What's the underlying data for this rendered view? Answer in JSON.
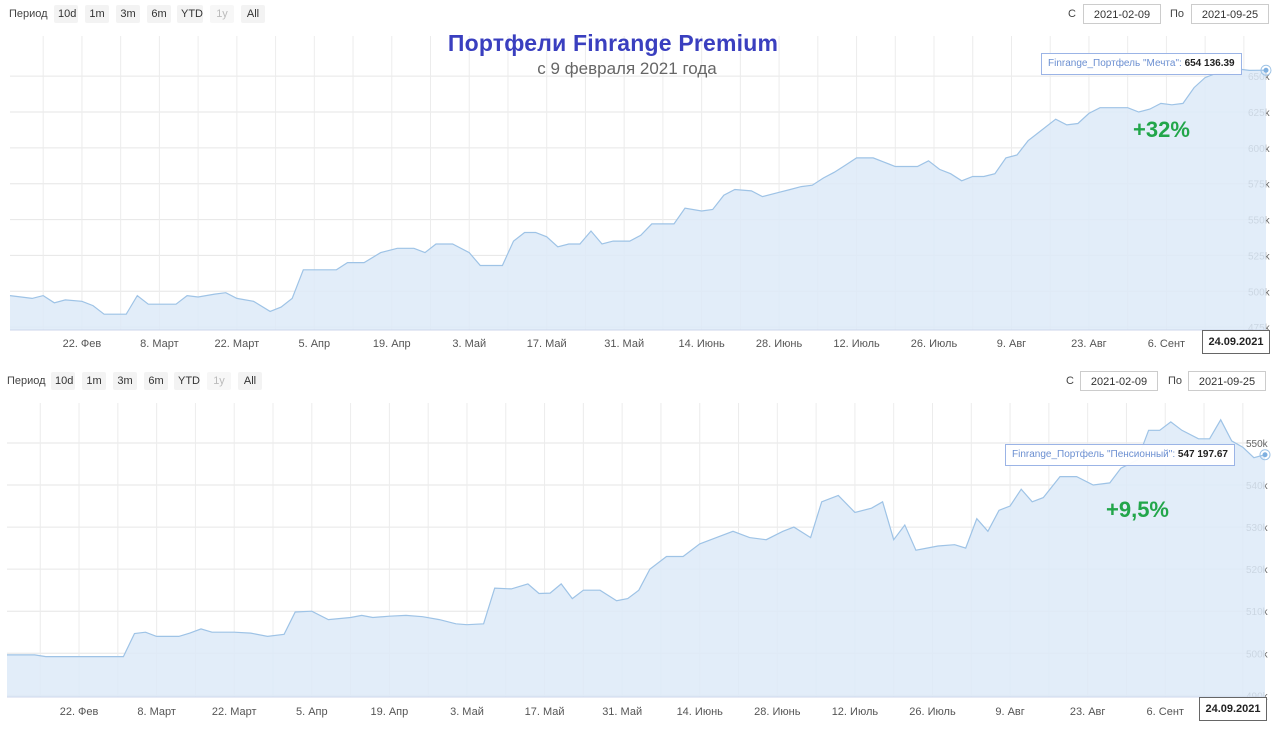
{
  "toolbar": {
    "period_label": "Период",
    "range_buttons": [
      "10d",
      "1m",
      "3m",
      "6m",
      "YTD",
      "1y",
      "All"
    ],
    "from_label": "С",
    "to_label": "По"
  },
  "title": "Портфели Finrange Premium",
  "subtitle": "с 9 февраля 2021 года",
  "charts": [
    {
      "from_date": "2021-02-09",
      "to_date": "2021-09-25",
      "tooltip_series": "Finrange_Портфель \"Мечта\"",
      "tooltip_value": "654 136.39",
      "change": "+32%",
      "date_flag": "24.09.2021"
    },
    {
      "from_date": "2021-02-09",
      "to_date": "2021-09-25",
      "tooltip_series": "Finrange_Портфель \"Пенсионный\"",
      "tooltip_value": "547 197.67",
      "change": "+9,5%",
      "date_flag": "24.09.2021"
    }
  ],
  "colors": {
    "line": "#9ec3e6",
    "fill": "#ddeaf8",
    "title": "#3a3fbf",
    "change": "#22a64a"
  },
  "chart_data": [
    {
      "type": "area",
      "x_range": [
        "2021-02-09",
        "2021-09-24"
      ],
      "x_ticks": [
        "22. Фев",
        "8. Март",
        "22. Март",
        "5. Апр",
        "19. Апр",
        "3. Май",
        "17. Май",
        "31. Май",
        "14. Июнь",
        "28. Июнь",
        "12. Июль",
        "26. Июль",
        "9. Авг",
        "23. Авг",
        "6. Сент"
      ],
      "y_ticks": [
        475000,
        500000,
        525000,
        550000,
        575000,
        600000,
        625000,
        650000
      ],
      "y_tick_labels": [
        "475k",
        "500k",
        "525k",
        "550k",
        "575k",
        "600k",
        "625k",
        "650k"
      ],
      "ylim": [
        473000,
        678000
      ],
      "grid": true,
      "series": [
        {
          "name": "Finrange_Портфель \"Мечта\"",
          "points": [
            [
              "2021-02-09",
              497000
            ],
            [
              "2021-02-11",
              496000
            ],
            [
              "2021-02-13",
              495000
            ],
            [
              "2021-02-15",
              497000
            ],
            [
              "2021-02-17",
              492000
            ],
            [
              "2021-02-19",
              494000
            ],
            [
              "2021-02-22",
              493000
            ],
            [
              "2021-02-24",
              490000
            ],
            [
              "2021-02-26",
              484000
            ],
            [
              "2021-03-02",
              484000
            ],
            [
              "2021-03-04",
              497000
            ],
            [
              "2021-03-06",
              491000
            ],
            [
              "2021-03-09",
              491000
            ],
            [
              "2021-03-11",
              491000
            ],
            [
              "2021-03-13",
              497000
            ],
            [
              "2021-03-15",
              496000
            ],
            [
              "2021-03-18",
              498000
            ],
            [
              "2021-03-20",
              499000
            ],
            [
              "2021-03-22",
              495000
            ],
            [
              "2021-03-25",
              493000
            ],
            [
              "2021-03-28",
              486000
            ],
            [
              "2021-03-30",
              489000
            ],
            [
              "2021-04-01",
              495000
            ],
            [
              "2021-04-03",
              515000
            ],
            [
              "2021-04-06",
              515000
            ],
            [
              "2021-04-09",
              515000
            ],
            [
              "2021-04-11",
              520000
            ],
            [
              "2021-04-14",
              520000
            ],
            [
              "2021-04-17",
              527000
            ],
            [
              "2021-04-20",
              530000
            ],
            [
              "2021-04-23",
              530000
            ],
            [
              "2021-04-25",
              527000
            ],
            [
              "2021-04-27",
              533000
            ],
            [
              "2021-04-30",
              533000
            ],
            [
              "2021-05-03",
              527000
            ],
            [
              "2021-05-05",
              518000
            ],
            [
              "2021-05-09",
              518000
            ],
            [
              "2021-05-11",
              535000
            ],
            [
              "2021-05-13",
              541000
            ],
            [
              "2021-05-15",
              541000
            ],
            [
              "2021-05-17",
              538000
            ],
            [
              "2021-05-19",
              531000
            ],
            [
              "2021-05-21",
              533000
            ],
            [
              "2021-05-23",
              533000
            ],
            [
              "2021-05-25",
              542000
            ],
            [
              "2021-05-27",
              533000
            ],
            [
              "2021-05-29",
              535000
            ],
            [
              "2021-06-01",
              535000
            ],
            [
              "2021-06-03",
              539000
            ],
            [
              "2021-06-05",
              547000
            ],
            [
              "2021-06-09",
              547000
            ],
            [
              "2021-06-11",
              558000
            ],
            [
              "2021-06-14",
              556000
            ],
            [
              "2021-06-16",
              557000
            ],
            [
              "2021-06-18",
              567000
            ],
            [
              "2021-06-20",
              571000
            ],
            [
              "2021-06-23",
              570000
            ],
            [
              "2021-06-25",
              566000
            ],
            [
              "2021-06-28",
              569000
            ],
            [
              "2021-06-30",
              571000
            ],
            [
              "2021-07-02",
              573000
            ],
            [
              "2021-07-04",
              574000
            ],
            [
              "2021-07-06",
              579000
            ],
            [
              "2021-07-08",
              583000
            ],
            [
              "2021-07-10",
              588000
            ],
            [
              "2021-07-12",
              593000
            ],
            [
              "2021-07-15",
              593000
            ],
            [
              "2021-07-17",
              590000
            ],
            [
              "2021-07-19",
              587000
            ],
            [
              "2021-07-21",
              587000
            ],
            [
              "2021-07-23",
              587000
            ],
            [
              "2021-07-25",
              591000
            ],
            [
              "2021-07-27",
              585000
            ],
            [
              "2021-07-29",
              582000
            ],
            [
              "2021-07-31",
              577000
            ],
            [
              "2021-08-02",
              580000
            ],
            [
              "2021-08-04",
              580000
            ],
            [
              "2021-08-06",
              582000
            ],
            [
              "2021-08-08",
              593000
            ],
            [
              "2021-08-10",
              595000
            ],
            [
              "2021-08-12",
              605000
            ],
            [
              "2021-08-14",
              611000
            ],
            [
              "2021-08-17",
              620000
            ],
            [
              "2021-08-19",
              616000
            ],
            [
              "2021-08-21",
              617000
            ],
            [
              "2021-08-23",
              624000
            ],
            [
              "2021-08-25",
              628000
            ],
            [
              "2021-08-28",
              628000
            ],
            [
              "2021-08-30",
              628000
            ],
            [
              "2021-09-01",
              625000
            ],
            [
              "2021-09-03",
              627000
            ],
            [
              "2021-09-05",
              631000
            ],
            [
              "2021-09-07",
              630000
            ],
            [
              "2021-09-09",
              631000
            ],
            [
              "2021-09-11",
              642000
            ],
            [
              "2021-09-13",
              649000
            ],
            [
              "2021-09-15",
              652000
            ],
            [
              "2021-09-17",
              652000
            ],
            [
              "2021-09-19",
              655000
            ],
            [
              "2021-09-21",
              654000
            ],
            [
              "2021-09-24",
              654136.39
            ]
          ]
        }
      ]
    },
    {
      "type": "area",
      "x_range": [
        "2021-02-09",
        "2021-09-24"
      ],
      "x_ticks": [
        "22. Фев",
        "8. Март",
        "22. Март",
        "5. Апр",
        "19. Апр",
        "3. Май",
        "17. Май",
        "31. Май",
        "14. Июнь",
        "28. Июнь",
        "12. Июль",
        "26. Июль",
        "9. Авг",
        "23. Авг",
        "6. Сент"
      ],
      "y_ticks": [
        490000,
        500000,
        510000,
        520000,
        530000,
        540000,
        550000
      ],
      "y_tick_labels": [
        "490k",
        "500k",
        "510k",
        "520k",
        "530k",
        "540k",
        "550k"
      ],
      "ylim": [
        489600,
        559500
      ],
      "grid": true,
      "series": [
        {
          "name": "Finrange_Портфель \"Пенсионный\"",
          "points": [
            [
              "2021-02-09",
              499600
            ],
            [
              "2021-02-14",
              499600
            ],
            [
              "2021-02-16",
              499200
            ],
            [
              "2021-02-20",
              499200
            ],
            [
              "2021-02-24",
              499200
            ],
            [
              "2021-02-28",
              499200
            ],
            [
              "2021-03-02",
              499200
            ],
            [
              "2021-03-04",
              504700
            ],
            [
              "2021-03-06",
              505000
            ],
            [
              "2021-03-08",
              504000
            ],
            [
              "2021-03-12",
              504000
            ],
            [
              "2021-03-14",
              504800
            ],
            [
              "2021-03-16",
              505800
            ],
            [
              "2021-03-18",
              505000
            ],
            [
              "2021-03-22",
              505000
            ],
            [
              "2021-03-25",
              504800
            ],
            [
              "2021-03-28",
              504000
            ],
            [
              "2021-03-31",
              504500
            ],
            [
              "2021-04-02",
              509800
            ],
            [
              "2021-04-05",
              510000
            ],
            [
              "2021-04-08",
              508000
            ],
            [
              "2021-04-12",
              508500
            ],
            [
              "2021-04-14",
              509000
            ],
            [
              "2021-04-16",
              508500
            ],
            [
              "2021-04-19",
              508800
            ],
            [
              "2021-04-22",
              509000
            ],
            [
              "2021-04-25",
              508700
            ],
            [
              "2021-04-28",
              508000
            ],
            [
              "2021-05-01",
              507000
            ],
            [
              "2021-05-03",
              506800
            ],
            [
              "2021-05-06",
              507000
            ],
            [
              "2021-05-08",
              515500
            ],
            [
              "2021-05-11",
              515300
            ],
            [
              "2021-05-14",
              516500
            ],
            [
              "2021-05-16",
              514200
            ],
            [
              "2021-05-18",
              514300
            ],
            [
              "2021-05-20",
              516500
            ],
            [
              "2021-05-22",
              513000
            ],
            [
              "2021-05-24",
              515000
            ],
            [
              "2021-05-27",
              515000
            ],
            [
              "2021-05-30",
              512500
            ],
            [
              "2021-06-01",
              513000
            ],
            [
              "2021-06-03",
              515000
            ],
            [
              "2021-06-05",
              520000
            ],
            [
              "2021-06-08",
              523000
            ],
            [
              "2021-06-11",
              523000
            ],
            [
              "2021-06-14",
              526000
            ],
            [
              "2021-06-17",
              527500
            ],
            [
              "2021-06-20",
              529000
            ],
            [
              "2021-06-23",
              527500
            ],
            [
              "2021-06-26",
              527000
            ],
            [
              "2021-06-29",
              529000
            ],
            [
              "2021-07-01",
              530000
            ],
            [
              "2021-07-04",
              527500
            ],
            [
              "2021-07-06",
              536000
            ],
            [
              "2021-07-09",
              537500
            ],
            [
              "2021-07-12",
              533500
            ],
            [
              "2021-07-15",
              534500
            ],
            [
              "2021-07-17",
              536000
            ],
            [
              "2021-07-19",
              527000
            ],
            [
              "2021-07-21",
              530500
            ],
            [
              "2021-07-23",
              524500
            ],
            [
              "2021-07-25",
              525000
            ],
            [
              "2021-07-27",
              525500
            ],
            [
              "2021-07-30",
              525800
            ],
            [
              "2021-08-01",
              525000
            ],
            [
              "2021-08-03",
              532000
            ],
            [
              "2021-08-05",
              529000
            ],
            [
              "2021-08-07",
              534000
            ],
            [
              "2021-08-09",
              535000
            ],
            [
              "2021-08-11",
              539000
            ],
            [
              "2021-08-13",
              536000
            ],
            [
              "2021-08-15",
              537000
            ],
            [
              "2021-08-18",
              542000
            ],
            [
              "2021-08-21",
              542000
            ],
            [
              "2021-08-24",
              540000
            ],
            [
              "2021-08-27",
              540500
            ],
            [
              "2021-08-29",
              544000
            ],
            [
              "2021-09-01",
              546000
            ],
            [
              "2021-09-03",
              553000
            ],
            [
              "2021-09-05",
              553000
            ],
            [
              "2021-09-07",
              555000
            ],
            [
              "2021-09-09",
              553000
            ],
            [
              "2021-09-12",
              551000
            ],
            [
              "2021-09-14",
              551000
            ],
            [
              "2021-09-16",
              555500
            ],
            [
              "2021-09-18",
              550500
            ],
            [
              "2021-09-20",
              549000
            ],
            [
              "2021-09-22",
              546500
            ],
            [
              "2021-09-24",
              547197.67
            ]
          ]
        }
      ]
    }
  ]
}
